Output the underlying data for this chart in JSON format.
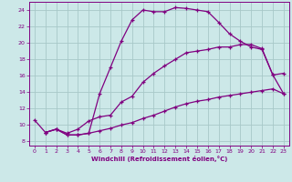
{
  "xlabel": "Windchill (Refroidissement éolien,°C)",
  "bg_color": "#cce8e8",
  "line_color": "#800080",
  "grid_color": "#a8c8c8",
  "xlim": [
    -0.5,
    23.5
  ],
  "ylim": [
    7.5,
    25.0
  ],
  "xticks": [
    0,
    1,
    2,
    3,
    4,
    5,
    6,
    7,
    8,
    9,
    10,
    11,
    12,
    13,
    14,
    15,
    16,
    17,
    18,
    19,
    20,
    21,
    22,
    23
  ],
  "yticks": [
    8,
    10,
    12,
    14,
    16,
    18,
    20,
    22,
    24
  ],
  "line1_x": [
    0,
    1,
    2,
    3,
    4,
    5,
    6,
    7,
    8,
    9,
    10,
    11,
    12,
    13,
    14,
    15,
    16,
    17,
    18,
    19,
    20,
    21,
    22,
    23
  ],
  "line1_y": [
    10.6,
    9.1,
    9.5,
    8.8,
    8.8,
    9.0,
    13.8,
    17.0,
    20.2,
    22.8,
    24.0,
    23.8,
    23.8,
    24.3,
    24.2,
    24.0,
    23.8,
    22.5,
    21.1,
    20.2,
    19.5,
    19.2,
    16.1,
    16.3
  ],
  "line2_x": [
    1,
    2,
    3,
    4,
    5,
    6,
    7,
    8,
    9,
    10,
    11,
    12,
    13,
    14,
    15,
    16,
    17,
    18,
    19,
    20,
    21,
    22,
    23
  ],
  "line2_y": [
    9.1,
    9.5,
    9.0,
    9.5,
    10.5,
    11.0,
    11.2,
    12.8,
    13.5,
    15.2,
    16.3,
    17.2,
    18.0,
    18.8,
    19.0,
    19.2,
    19.5,
    19.5,
    19.8,
    19.8,
    19.3,
    16.1,
    13.8
  ],
  "line3_x": [
    1,
    2,
    3,
    4,
    5,
    6,
    7,
    8,
    9,
    10,
    11,
    12,
    13,
    14,
    15,
    16,
    17,
    18,
    19,
    20,
    21,
    22,
    23
  ],
  "line3_y": [
    9.1,
    9.5,
    8.8,
    8.8,
    9.0,
    9.3,
    9.6,
    10.0,
    10.3,
    10.8,
    11.2,
    11.7,
    12.2,
    12.6,
    12.9,
    13.1,
    13.4,
    13.6,
    13.8,
    14.0,
    14.2,
    14.4,
    13.8
  ]
}
